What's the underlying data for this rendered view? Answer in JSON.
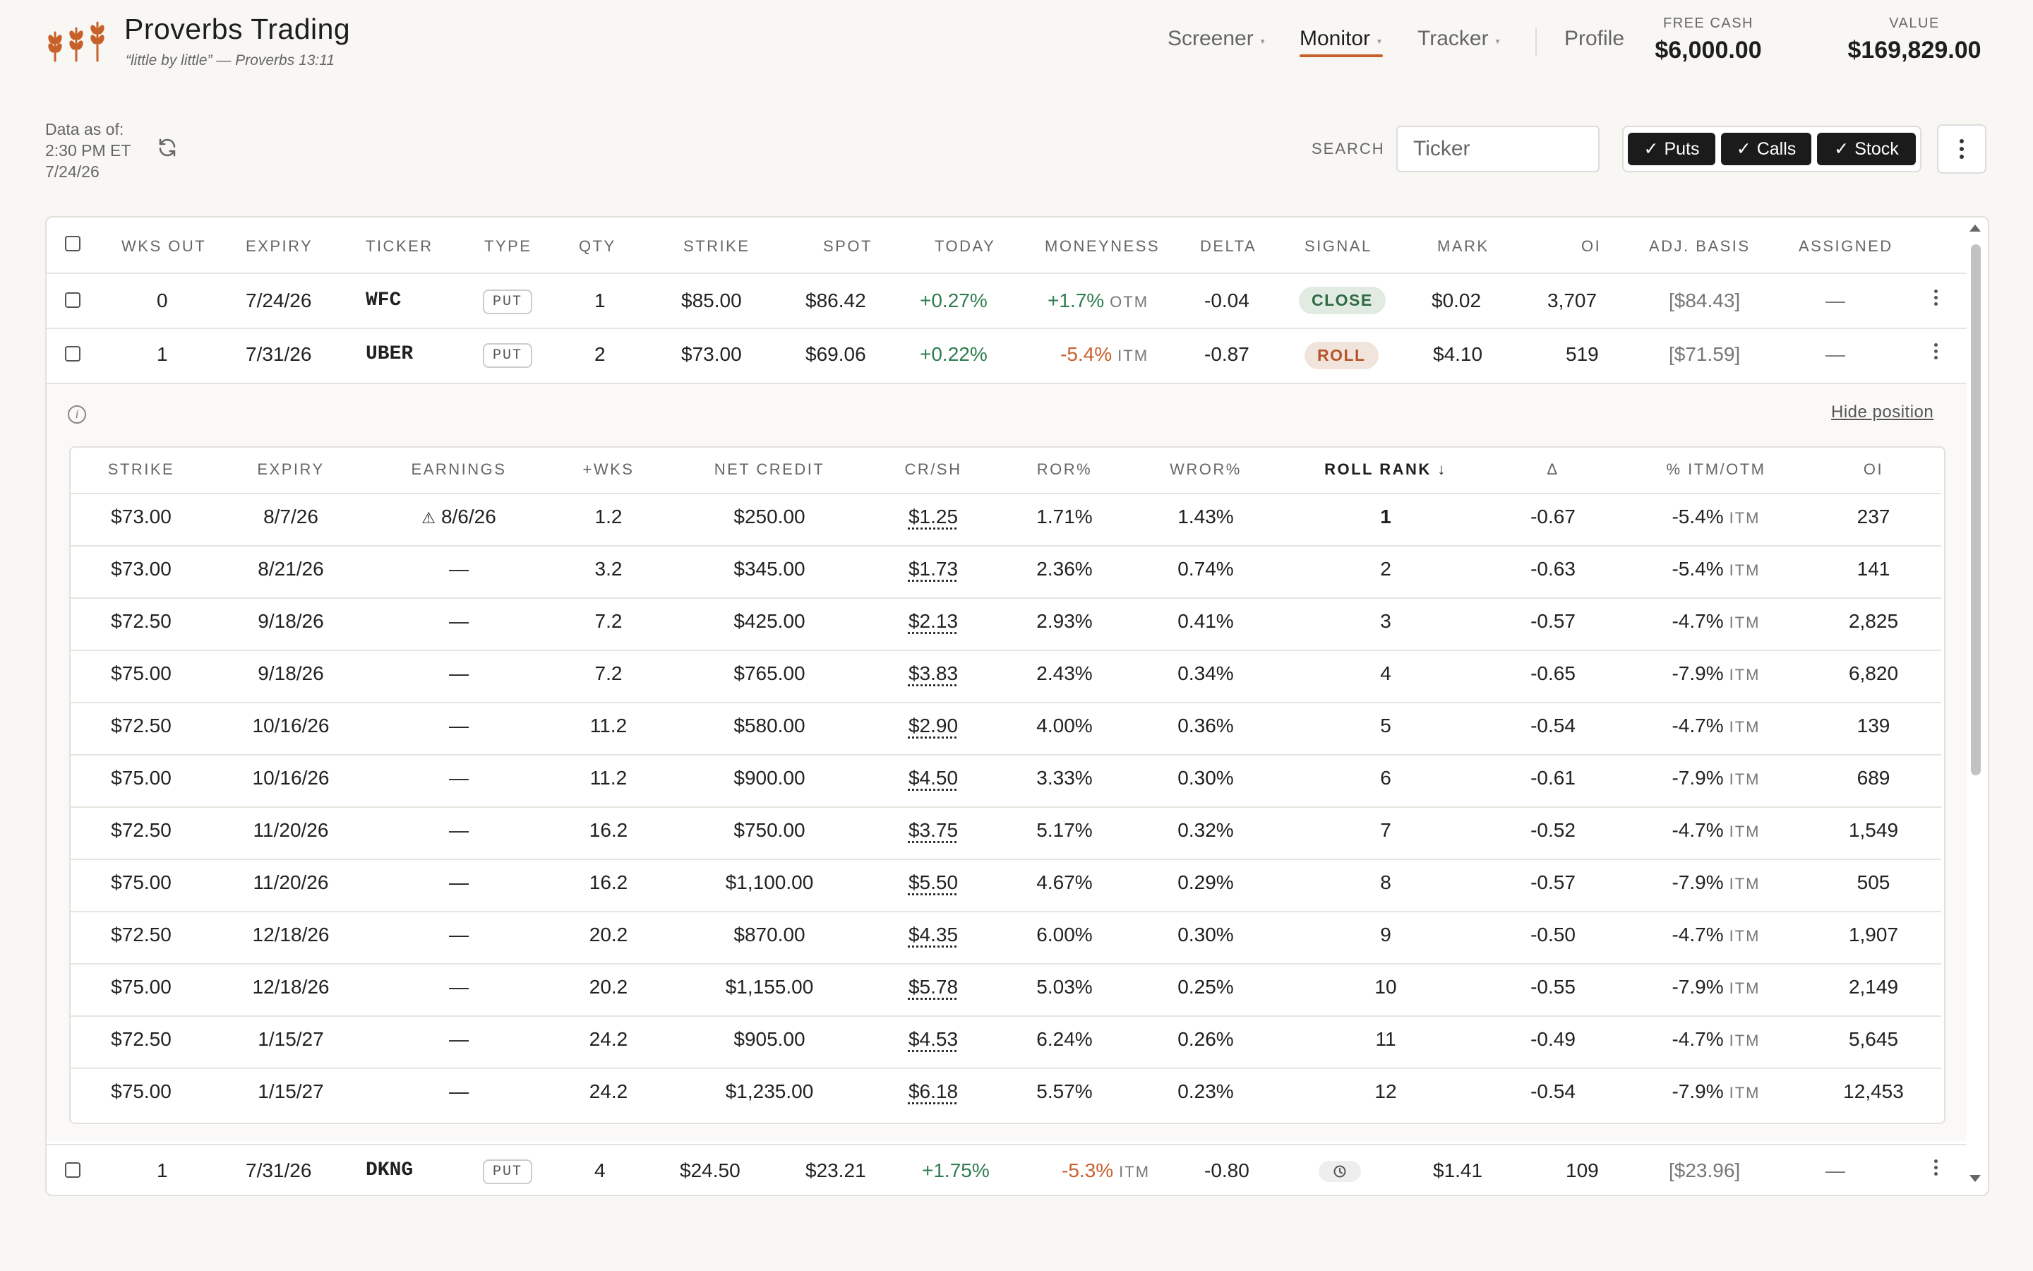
{
  "brand": {
    "title": "Proverbs Trading",
    "subtitle": "“little by little” — Proverbs 13:11",
    "accent_color": "#c8602a"
  },
  "nav": [
    {
      "label": "Screener",
      "active": false
    },
    {
      "label": "Monitor",
      "active": true
    },
    {
      "label": "Tracker",
      "active": false
    },
    {
      "label": "Profile",
      "active": false
    }
  ],
  "stats": {
    "free_cash": {
      "label": "FREE CASH",
      "value": "$6,000.00"
    },
    "value": {
      "label": "VALUE",
      "value": "$169,829.00"
    }
  },
  "asof": {
    "line1": "Data as of:",
    "line2": "2:30 PM ET",
    "line3": "7/24/26"
  },
  "search": {
    "label": "SEARCH",
    "placeholder": "Ticker",
    "value": ""
  },
  "filters": [
    {
      "label": "Puts",
      "checked": true
    },
    {
      "label": "Calls",
      "checked": true
    },
    {
      "label": "Stock",
      "checked": true
    }
  ],
  "table": {
    "headers": [
      "WKS OUT",
      "EXPIRY",
      "TICKER",
      "TYPE",
      "QTY",
      "STRIKE",
      "SPOT",
      "TODAY",
      "MONEYNESS",
      "DELTA",
      "SIGNAL",
      "MARK",
      "OI",
      "ADJ. BASIS",
      "ASSIGNED"
    ],
    "rows": [
      {
        "wks_out": "0",
        "expiry": "7/24/26",
        "ticker": "WFC",
        "type": "PUT",
        "qty": "1",
        "strike": "$85.00",
        "spot": "$86.42",
        "today": "+0.27%",
        "moneyness_pct": "+1.7%",
        "moneyness_tag": "OTM",
        "delta": "-0.04",
        "signal": "CLOSE",
        "mark": "$0.02",
        "oi": "3,707",
        "adj_basis": "[$84.43]",
        "assigned": "—"
      },
      {
        "wks_out": "1",
        "expiry": "7/31/26",
        "ticker": "UBER",
        "type": "PUT",
        "qty": "2",
        "strike": "$73.00",
        "spot": "$69.06",
        "today": "+0.22%",
        "moneyness_pct": "-5.4%",
        "moneyness_tag": "ITM",
        "delta": "-0.87",
        "signal": "ROLL",
        "mark": "$4.10",
        "oi": "519",
        "adj_basis": "[$71.59]",
        "assigned": "—"
      },
      {
        "wks_out": "1",
        "expiry": "7/31/26",
        "ticker": "DKNG",
        "type": "PUT",
        "qty": "4",
        "strike": "$24.50",
        "spot": "$23.21",
        "today": "+1.75%",
        "moneyness_pct": "-5.3%",
        "moneyness_tag": "ITM",
        "delta": "-0.80",
        "signal": "clock-icon",
        "mark": "$1.41",
        "oi": "109",
        "adj_basis": "[$23.96]",
        "assigned": "—"
      }
    ]
  },
  "roll": {
    "hide_label": "Hide position",
    "headers": [
      "STRIKE",
      "EXPIRY",
      "EARNINGS",
      "+WKS",
      "NET CREDIT",
      "CR/SH",
      "ROR%",
      "WROR%",
      "ROLL RANK ↓",
      "Δ",
      "% ITM/OTM",
      "OI"
    ],
    "rows": [
      {
        "strike": "$73.00",
        "expiry": "8/7/26",
        "earnings": "8/6/26",
        "wks": "1.2",
        "net_credit": "$250.00",
        "cr_sh": "$1.25",
        "ror": "1.71%",
        "wror": "1.43%",
        "rank": "1",
        "delta": "-0.67",
        "pct": "-5.4%",
        "tag": "ITM",
        "oi": "237"
      },
      {
        "strike": "$73.00",
        "expiry": "8/21/26",
        "earnings": "—",
        "wks": "3.2",
        "net_credit": "$345.00",
        "cr_sh": "$1.73",
        "ror": "2.36%",
        "wror": "0.74%",
        "rank": "2",
        "delta": "-0.63",
        "pct": "-5.4%",
        "tag": "ITM",
        "oi": "141"
      },
      {
        "strike": "$72.50",
        "expiry": "9/18/26",
        "earnings": "—",
        "wks": "7.2",
        "net_credit": "$425.00",
        "cr_sh": "$2.13",
        "ror": "2.93%",
        "wror": "0.41%",
        "rank": "3",
        "delta": "-0.57",
        "pct": "-4.7%",
        "tag": "ITM",
        "oi": "2,825"
      },
      {
        "strike": "$75.00",
        "expiry": "9/18/26",
        "earnings": "—",
        "wks": "7.2",
        "net_credit": "$765.00",
        "cr_sh": "$3.83",
        "ror": "2.43%",
        "wror": "0.34%",
        "rank": "4",
        "delta": "-0.65",
        "pct": "-7.9%",
        "tag": "ITM",
        "oi": "6,820"
      },
      {
        "strike": "$72.50",
        "expiry": "10/16/26",
        "earnings": "—",
        "wks": "11.2",
        "net_credit": "$580.00",
        "cr_sh": "$2.90",
        "ror": "4.00%",
        "wror": "0.36%",
        "rank": "5",
        "delta": "-0.54",
        "pct": "-4.7%",
        "tag": "ITM",
        "oi": "139"
      },
      {
        "strike": "$75.00",
        "expiry": "10/16/26",
        "earnings": "—",
        "wks": "11.2",
        "net_credit": "$900.00",
        "cr_sh": "$4.50",
        "ror": "3.33%",
        "wror": "0.30%",
        "rank": "6",
        "delta": "-0.61",
        "pct": "-7.9%",
        "tag": "ITM",
        "oi": "689"
      },
      {
        "strike": "$72.50",
        "expiry": "11/20/26",
        "earnings": "—",
        "wks": "16.2",
        "net_credit": "$750.00",
        "cr_sh": "$3.75",
        "ror": "5.17%",
        "wror": "0.32%",
        "rank": "7",
        "delta": "-0.52",
        "pct": "-4.7%",
        "tag": "ITM",
        "oi": "1,549"
      },
      {
        "strike": "$75.00",
        "expiry": "11/20/26",
        "earnings": "—",
        "wks": "16.2",
        "net_credit": "$1,100.00",
        "cr_sh": "$5.50",
        "ror": "4.67%",
        "wror": "0.29%",
        "rank": "8",
        "delta": "-0.57",
        "pct": "-7.9%",
        "tag": "ITM",
        "oi": "505"
      },
      {
        "strike": "$72.50",
        "expiry": "12/18/26",
        "earnings": "—",
        "wks": "20.2",
        "net_credit": "$870.00",
        "cr_sh": "$4.35",
        "ror": "6.00%",
        "wror": "0.30%",
        "rank": "9",
        "delta": "-0.50",
        "pct": "-4.7%",
        "tag": "ITM",
        "oi": "1,907"
      },
      {
        "strike": "$75.00",
        "expiry": "12/18/26",
        "earnings": "—",
        "wks": "20.2",
        "net_credit": "$1,155.00",
        "cr_sh": "$5.78",
        "ror": "5.03%",
        "wror": "0.25%",
        "rank": "10",
        "delta": "-0.55",
        "pct": "-7.9%",
        "tag": "ITM",
        "oi": "2,149"
      },
      {
        "strike": "$72.50",
        "expiry": "1/15/27",
        "earnings": "—",
        "wks": "24.2",
        "net_credit": "$905.00",
        "cr_sh": "$4.53",
        "ror": "6.24%",
        "wror": "0.26%",
        "rank": "11",
        "delta": "-0.49",
        "pct": "-4.7%",
        "tag": "ITM",
        "oi": "5,645"
      },
      {
        "strike": "$75.00",
        "expiry": "1/15/27",
        "earnings": "—",
        "wks": "24.2",
        "net_credit": "$1,235.00",
        "cr_sh": "$6.18",
        "ror": "5.57%",
        "wror": "0.23%",
        "rank": "12",
        "delta": "-0.54",
        "pct": "-7.9%",
        "tag": "ITM",
        "oi": "12,453"
      }
    ]
  }
}
